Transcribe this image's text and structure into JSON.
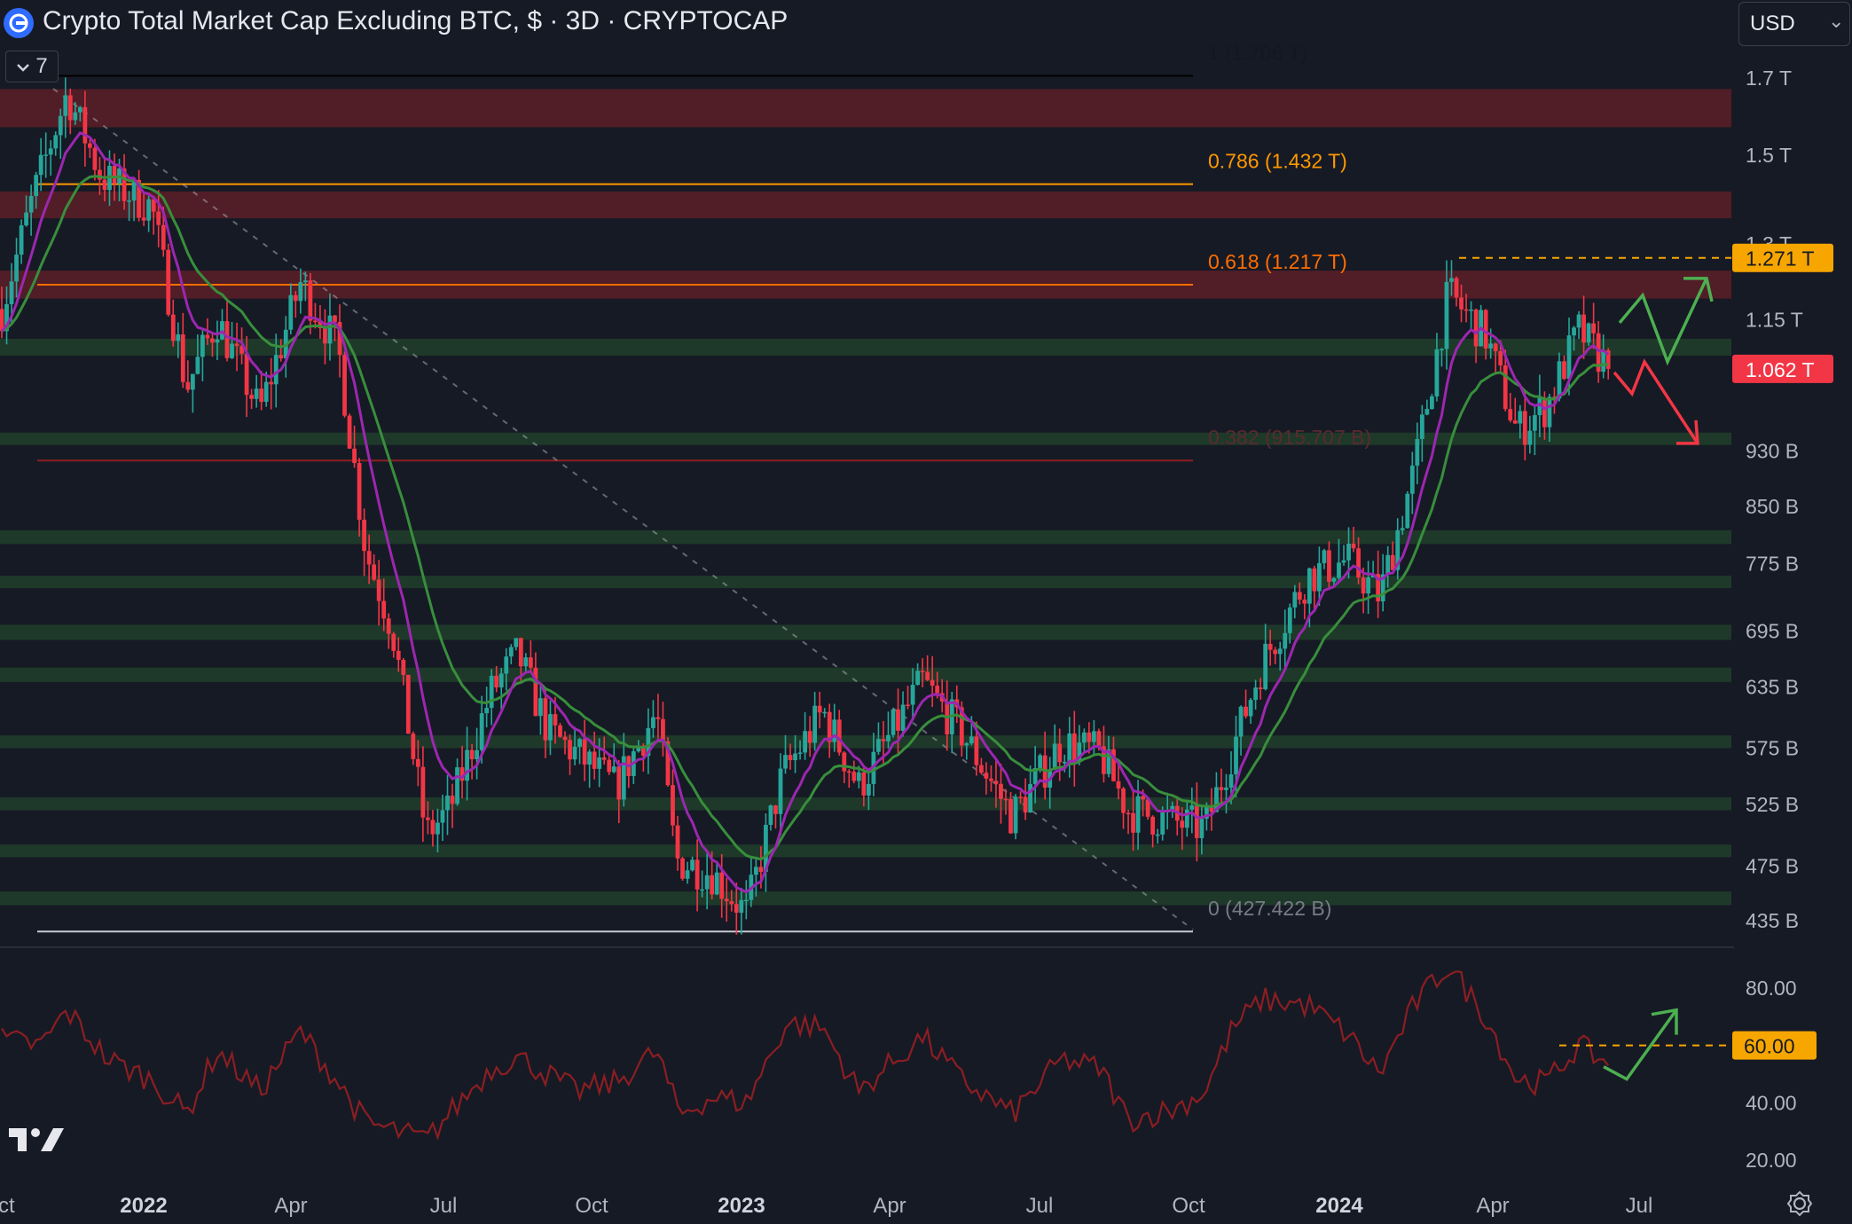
{
  "header": {
    "title": "Crypto Total Market Cap Excluding BTC, $ · 3D · CRYPTOCAP",
    "indicator_count": "7",
    "currency": "USD"
  },
  "price_axis": {
    "labels": [
      "1.7 T",
      "1.5 T",
      "1.3 T",
      "1.15 T",
      "930 B",
      "850 B",
      "775 B",
      "695 B",
      "635 B",
      "575 B",
      "525 B",
      "475 B",
      "435 B"
    ],
    "markers": [
      {
        "label": "1.271 T",
        "color": "#f7a600",
        "text_color": "#161a25"
      },
      {
        "label": "1.062 T",
        "color": "#f23645",
        "text_color": "#ffffff"
      }
    ]
  },
  "rsi_axis": {
    "labels": [
      "80.00",
      "40.00",
      "20.00"
    ],
    "marker": {
      "label": "60.00",
      "color": "#f7a600",
      "text_color": "#161a25"
    }
  },
  "time_axis": {
    "labels": [
      {
        "text": "ct",
        "bold": false
      },
      {
        "text": "2022",
        "bold": true
      },
      {
        "text": "Apr",
        "bold": false
      },
      {
        "text": "Jul",
        "bold": false
      },
      {
        "text": "Oct",
        "bold": false
      },
      {
        "text": "2023",
        "bold": true
      },
      {
        "text": "Apr",
        "bold": false
      },
      {
        "text": "Jul",
        "bold": false
      },
      {
        "text": "Oct",
        "bold": false
      },
      {
        "text": "2024",
        "bold": true
      },
      {
        "text": "Apr",
        "bold": false
      },
      {
        "text": "Jul",
        "bold": false
      }
    ]
  },
  "fib_levels": [
    {
      "label": "1 (1.706 T)",
      "color": "#131722"
    },
    {
      "label": "0.786 (1.432 T)",
      "color": "#ff9800"
    },
    {
      "label": "0.618 (1.217 T)",
      "color": "#ff6d00"
    },
    {
      "label": "0.382 (915.707 B)",
      "color": "#5a2a2e"
    },
    {
      "label": "0 (427.422 B)",
      "color": "#787b86"
    }
  ],
  "colors": {
    "background": "#161a25",
    "candle_up": "#26a69a",
    "candle_down": "#f23645",
    "ema_fast": "#9c27b0",
    "ema_slow": "#388e3c",
    "resistance_zone": "#5c1f27",
    "support_zone": "#1f3d2a",
    "rsi_line": "#8b1e22",
    "arrow_up": "#4caf50",
    "arrow_down": "#f23645"
  },
  "chart_data": {
    "type": "candlestick",
    "title": "Crypto Total Market Cap Excluding BTC, $ · 3D · CRYPTOCAP",
    "interval": "3D",
    "currency": "USD",
    "x_range": [
      "2021-10-01",
      "2024-07-01"
    ],
    "y_scale": "log",
    "y_range": [
      420000000000,
      1850000000000
    ],
    "close_path": [
      [
        "2021-10-01",
        1170000000000
      ],
      [
        "2021-10-20",
        1400000000000
      ],
      [
        "2021-11-10",
        1660000000000
      ],
      [
        "2021-12-01",
        1450000000000
      ],
      [
        "2022-01-01",
        1380000000000
      ],
      [
        "2022-01-22",
        1030000000000
      ],
      [
        "2022-02-10",
        1150000000000
      ],
      [
        "2022-03-08",
        990000000000
      ],
      [
        "2022-04-02",
        1220000000000
      ],
      [
        "2022-04-25",
        1100000000000
      ],
      [
        "2022-05-12",
        790000000000
      ],
      [
        "2022-05-28",
        700000000000
      ],
      [
        "2022-06-18",
        500000000000
      ],
      [
        "2022-07-02",
        520000000000
      ],
      [
        "2022-07-28",
        630000000000
      ],
      [
        "2022-08-13",
        670000000000
      ],
      [
        "2022-09-01",
        590000000000
      ],
      [
        "2022-09-18",
        570000000000
      ],
      [
        "2022-10-12",
        540000000000
      ],
      [
        "2022-11-06",
        610000000000
      ],
      [
        "2022-11-18",
        480000000000
      ],
      [
        "2022-12-10",
        470000000000
      ],
      [
        "2022-12-31",
        440000000000
      ],
      [
        "2023-01-22",
        550000000000
      ],
      [
        "2023-02-16",
        610000000000
      ],
      [
        "2023-03-10",
        540000000000
      ],
      [
        "2023-04-18",
        640000000000
      ],
      [
        "2023-05-12",
        590000000000
      ],
      [
        "2023-06-12",
        515000000000
      ],
      [
        "2023-07-12",
        580000000000
      ],
      [
        "2023-08-05",
        570000000000
      ],
      [
        "2023-08-22",
        520000000000
      ],
      [
        "2023-09-20",
        510000000000
      ],
      [
        "2023-10-08",
        505000000000
      ],
      [
        "2023-10-25",
        575000000000
      ],
      [
        "2023-11-12",
        660000000000
      ],
      [
        "2023-12-10",
        760000000000
      ],
      [
        "2024-01-03",
        780000000000
      ],
      [
        "2024-01-23",
        735000000000
      ],
      [
        "2024-02-13",
        900000000000
      ],
      [
        "2024-03-05",
        1200000000000
      ],
      [
        "2024-03-28",
        1120000000000
      ],
      [
        "2024-04-16",
        960000000000
      ],
      [
        "2024-05-04",
        1000000000000
      ],
      [
        "2024-05-24",
        1130000000000
      ],
      [
        "2024-06-12",
        1062000000000
      ]
    ],
    "annotations": {
      "current_price": 1062000000000,
      "prior_high": 1271000000000,
      "fib_prices": [
        1706000000000,
        1432000000000,
        1217000000000,
        915707000000,
        427422000000
      ],
      "resistance_zones": [
        [
          1570000000000,
          1670000000000
        ],
        [
          1355000000000,
          1415000000000
        ],
        [
          1190000000000,
          1245000000000
        ]
      ],
      "support_zones": [
        [
          1085000000000,
          1115000000000
        ],
        [
          940000000000,
          958000000000
        ],
        [
          800000000000,
          818000000000
        ],
        [
          745000000000,
          760000000000
        ],
        [
          685000000000,
          702000000000
        ],
        [
          640000000000,
          655000000000
        ],
        [
          575000000000,
          587000000000
        ],
        [
          520000000000,
          531000000000
        ],
        [
          482000000000,
          492000000000
        ],
        [
          446000000000,
          456000000000
        ]
      ],
      "scenario_arrows": [
        "up",
        "down"
      ]
    },
    "rsi": {
      "y_range": [
        15,
        92
      ],
      "reference_level": 60,
      "series": [
        [
          "2021-10-01",
          62
        ],
        [
          "2021-10-25",
          60
        ],
        [
          "2021-11-10",
          72
        ],
        [
          "2021-12-05",
          55
        ],
        [
          "2022-01-01",
          48
        ],
        [
          "2022-01-22",
          36
        ],
        [
          "2022-02-10",
          58
        ],
        [
          "2022-03-08",
          44
        ],
        [
          "2022-04-02",
          65
        ],
        [
          "2022-04-25",
          47
        ],
        [
          "2022-05-12",
          33
        ],
        [
          "2022-06-18",
          27
        ],
        [
          "2022-07-05",
          38
        ],
        [
          "2022-07-28",
          52
        ],
        [
          "2022-08-13",
          56
        ],
        [
          "2022-09-18",
          44
        ],
        [
          "2022-10-12",
          47
        ],
        [
          "2022-11-06",
          58
        ],
        [
          "2022-11-20",
          36
        ],
        [
          "2022-12-10",
          42
        ],
        [
          "2022-12-31",
          40
        ],
        [
          "2023-01-25",
          68
        ],
        [
          "2023-02-16",
          66
        ],
        [
          "2023-03-10",
          44
        ],
        [
          "2023-04-18",
          63
        ],
        [
          "2023-05-12",
          48
        ],
        [
          "2023-06-12",
          36
        ],
        [
          "2023-07-12",
          55
        ],
        [
          "2023-08-05",
          52
        ],
        [
          "2023-08-22",
          34
        ],
        [
          "2023-09-20",
          38
        ],
        [
          "2023-10-08",
          44
        ],
        [
          "2023-10-25",
          66
        ],
        [
          "2023-11-12",
          76
        ],
        [
          "2023-12-10",
          74
        ],
        [
          "2024-01-03",
          64
        ],
        [
          "2024-01-23",
          50
        ],
        [
          "2024-02-13",
          74
        ],
        [
          "2024-03-05",
          88
        ],
        [
          "2024-03-28",
          70
        ],
        [
          "2024-04-16",
          48
        ],
        [
          "2024-05-04",
          47
        ],
        [
          "2024-05-24",
          60
        ],
        [
          "2024-06-12",
          53
        ]
      ]
    }
  }
}
